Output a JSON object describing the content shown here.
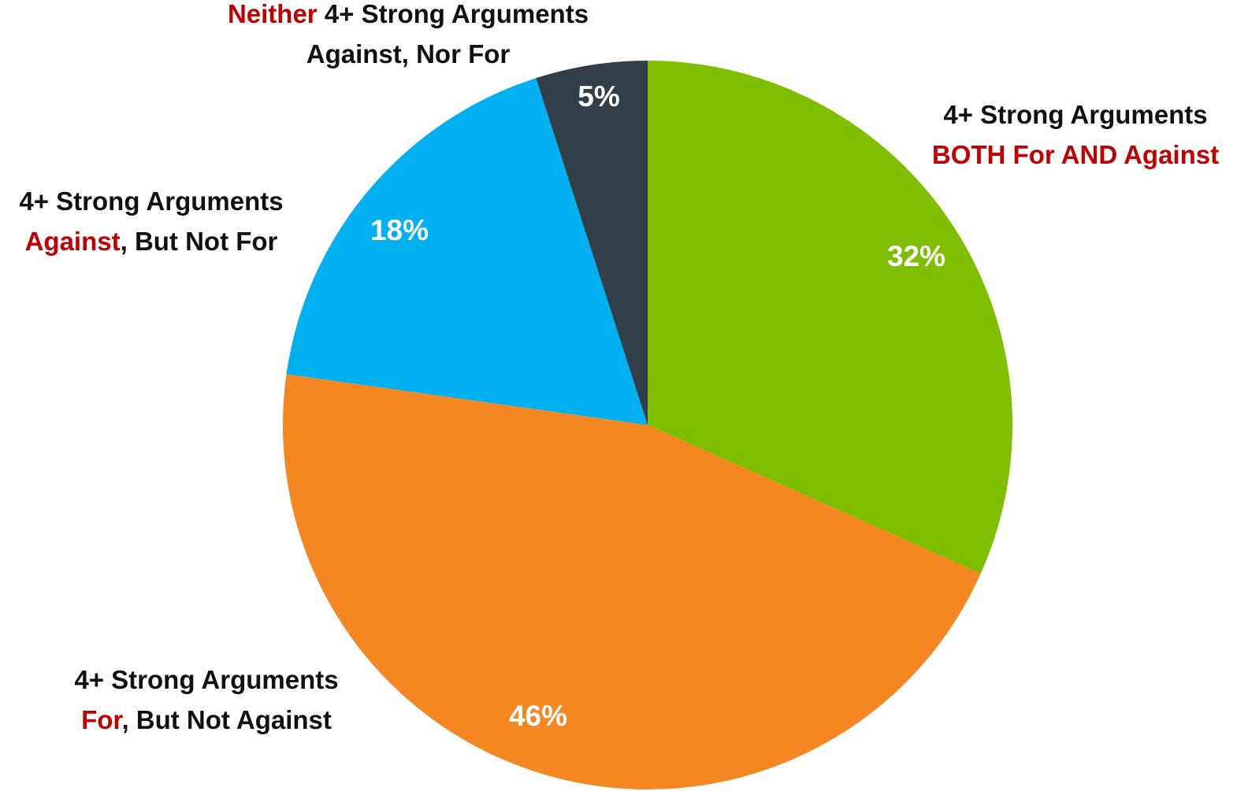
{
  "chart_data": {
    "type": "pie",
    "categories": [
      [
        [
          {
            "text": "4+ Strong Arguments"
          }
        ],
        [
          {
            "text": "BOTH For AND Against",
            "highlight": true
          }
        ]
      ],
      [
        [
          {
            "text": "4+ Strong Arguments"
          }
        ],
        [
          {
            "text": "For",
            "highlight": true
          },
          {
            "text": ", But Not Against"
          }
        ]
      ],
      [
        [
          {
            "text": "4+ Strong Arguments"
          }
        ],
        [
          {
            "text": "Against",
            "highlight": true
          },
          {
            "text": ", But Not For"
          }
        ]
      ],
      [
        [
          {
            "text": "Neither",
            "highlight": true
          },
          {
            "text": " 4+ Strong Arguments"
          }
        ],
        [
          {
            "text": "Against, Nor For"
          }
        ]
      ]
    ],
    "values": [
      32,
      46,
      18,
      5
    ],
    "value_labels": [
      "32%",
      "46%",
      "18%",
      "5%"
    ],
    "colors": [
      "#7fbf00",
      "#f58723",
      "#00b0f0",
      "#333f48"
    ],
    "highlight_color": "#c00000",
    "start_angle": 0,
    "direction": "clockwise"
  }
}
